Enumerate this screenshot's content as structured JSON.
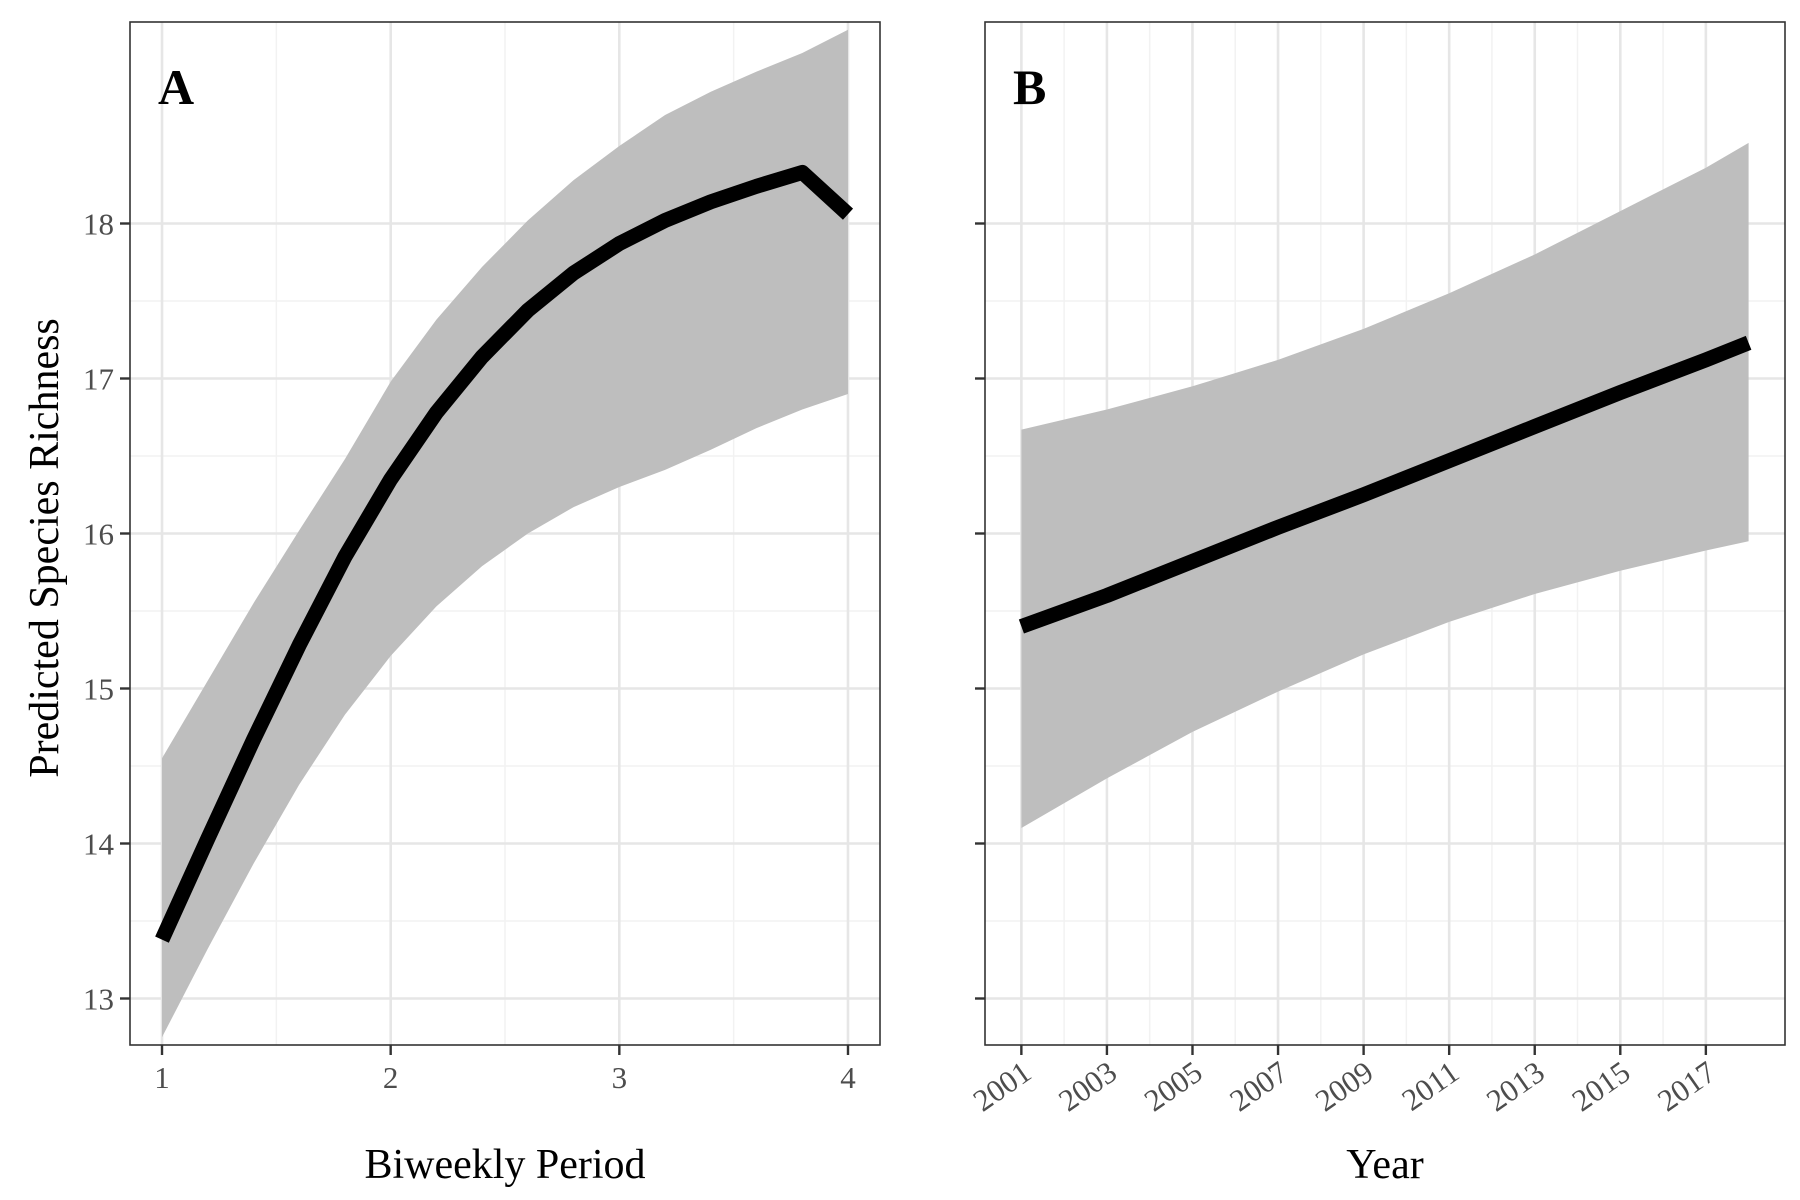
{
  "figure": {
    "ylabel": "Predicted Species Richness"
  },
  "chart_data": [
    {
      "type": "line",
      "panel_label": "A",
      "xlabel": "Biweekly Period",
      "ylabel": "Predicted Species Richness",
      "xlim": [
        0.86,
        4.14
      ],
      "ylim": [
        12.7,
        19.3
      ],
      "x_ticks": [
        1,
        2,
        3,
        4
      ],
      "x_tick_labels": [
        "1",
        "2",
        "3",
        "4"
      ],
      "y_ticks": [
        13,
        14,
        15,
        16,
        17,
        18
      ],
      "y_tick_labels": [
        "13",
        "14",
        "15",
        "16",
        "17",
        "18"
      ],
      "x_tick_rotation": 0,
      "grid": true,
      "series": [
        {
          "x": [
            1.0,
            1.2,
            1.4,
            1.6,
            1.8,
            2.0,
            2.2,
            2.4,
            2.6,
            2.8,
            3.0,
            3.2,
            3.4,
            3.6,
            3.8,
            4.0
          ],
          "y": [
            13.38,
            14.03,
            14.67,
            15.28,
            15.85,
            16.35,
            16.78,
            17.14,
            17.44,
            17.68,
            17.87,
            18.02,
            18.14,
            18.24,
            18.33,
            18.06
          ],
          "lower": [
            12.75,
            13.32,
            13.87,
            14.38,
            14.83,
            15.21,
            15.53,
            15.79,
            16.0,
            16.17,
            16.3,
            16.41,
            16.54,
            16.68,
            16.8,
            16.9
          ],
          "upper": [
            14.55,
            15.05,
            15.55,
            16.02,
            16.48,
            16.98,
            17.38,
            17.72,
            18.02,
            18.28,
            18.5,
            18.7,
            18.85,
            18.98,
            19.1,
            19.25
          ]
        }
      ],
      "line_color": "#000000",
      "band_color": "#bebebe"
    },
    {
      "type": "line",
      "panel_label": "B",
      "xlabel": "Year",
      "ylabel": "",
      "xlim": [
        2000.15,
        2018.85
      ],
      "ylim": [
        12.7,
        19.3
      ],
      "x_ticks": [
        2001,
        2003,
        2005,
        2007,
        2009,
        2011,
        2013,
        2015,
        2017
      ],
      "x_tick_labels": [
        "2001",
        "2003",
        "2005",
        "2007",
        "2009",
        "2011",
        "2013",
        "2015",
        "2017"
      ],
      "y_ticks": [
        13,
        14,
        15,
        16,
        17,
        18
      ],
      "y_tick_labels": [
        "",
        "",
        "",
        "",
        "",
        ""
      ],
      "x_tick_rotation": -35,
      "grid": true,
      "series": [
        {
          "x": [
            2001,
            2003,
            2005,
            2007,
            2009,
            2011,
            2013,
            2015,
            2017,
            2018
          ],
          "y": [
            15.4,
            15.6,
            15.82,
            16.04,
            16.25,
            16.47,
            16.69,
            16.91,
            17.12,
            17.23
          ],
          "lower": [
            14.1,
            14.42,
            14.72,
            14.98,
            15.22,
            15.43,
            15.61,
            15.76,
            15.89,
            15.95
          ],
          "upper": [
            16.67,
            16.8,
            16.95,
            17.12,
            17.32,
            17.55,
            17.8,
            18.08,
            18.36,
            18.52
          ]
        }
      ],
      "line_color": "#000000",
      "band_color": "#bebebe"
    }
  ]
}
